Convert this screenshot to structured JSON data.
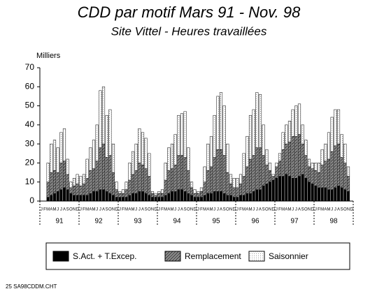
{
  "chart_data": {
    "type": "stacked-bar",
    "title": "CDD par motif Mars 91 - Nov. 98",
    "subtitle": "Site Vittel - Heures travaillées",
    "y_label": "Milliers",
    "footer": "25 SA98CDDM.CHT",
    "categories": [
      "J",
      "F",
      "M",
      "A",
      "M",
      "J",
      "J",
      "A",
      "S",
      "O",
      "N",
      "D",
      "J",
      "F",
      "M",
      "A",
      "M",
      "J",
      "J",
      "A",
      "S",
      "O",
      "N",
      "D",
      "J",
      "F",
      "M",
      "A",
      "M",
      "J",
      "J",
      "A",
      "S",
      "O",
      "N",
      "D",
      "J",
      "F",
      "M",
      "A",
      "M",
      "J",
      "J",
      "A",
      "S",
      "O",
      "N",
      "D",
      "J",
      "F",
      "M",
      "A",
      "M",
      "J",
      "J",
      "A",
      "S",
      "O",
      "N",
      "D",
      "J",
      "F",
      "M",
      "A",
      "M",
      "J",
      "J",
      "A",
      "S",
      "O",
      "N",
      "D",
      "J",
      "F",
      "M",
      "A",
      "M",
      "J",
      "J",
      "A",
      "S",
      "O",
      "N",
      "D",
      "J",
      "F",
      "M",
      "A",
      "M",
      "J",
      "J",
      "A",
      "S",
      "O",
      "N",
      "D"
    ],
    "years": [
      "91",
      "92",
      "93",
      "94",
      "95",
      "96",
      "97",
      "98"
    ],
    "series": [
      {
        "name": "S.Act. + T.Excep.",
        "color": "#000000",
        "values": [
          null,
          null,
          2,
          3,
          4,
          5,
          6,
          7,
          6,
          4,
          3,
          3,
          3,
          3,
          3,
          4,
          5,
          5,
          6,
          6,
          5,
          4,
          3,
          2,
          2,
          2,
          2,
          3,
          4,
          4,
          5,
          5,
          4,
          3,
          2,
          2,
          2,
          2,
          3,
          4,
          5,
          5,
          6,
          6,
          5,
          4,
          3,
          2,
          2,
          2,
          3,
          4,
          4,
          5,
          5,
          5,
          4,
          3,
          3,
          2,
          2,
          3,
          3,
          4,
          4,
          5,
          6,
          6,
          8,
          9,
          10,
          11,
          12,
          13,
          13,
          14,
          13,
          12,
          12,
          13,
          14,
          12,
          10,
          9,
          8,
          7,
          7,
          7,
          6,
          6,
          7,
          8,
          7,
          6,
          5,
          null
        ]
      },
      {
        "name": "Remplacement",
        "color": "#8c8c8c",
        "values": [
          null,
          null,
          8,
          12,
          12,
          10,
          14,
          14,
          8,
          3,
          5,
          6,
          5,
          6,
          9,
          12,
          12,
          16,
          22,
          24,
          18,
          20,
          12,
          4,
          2,
          2,
          4,
          8,
          10,
          12,
          15,
          14,
          13,
          10,
          2,
          1,
          2,
          2,
          8,
          12,
          12,
          14,
          18,
          18,
          18,
          12,
          4,
          2,
          2,
          3,
          7,
          12,
          14,
          18,
          22,
          22,
          20,
          12,
          6,
          5,
          5,
          6,
          10,
          14,
          18,
          19,
          22,
          22,
          16,
          10,
          6,
          2,
          6,
          8,
          14,
          16,
          18,
          22,
          22,
          22,
          16,
          12,
          8,
          8,
          8,
          8,
          12,
          14,
          16,
          20,
          22,
          22,
          16,
          14,
          8,
          null
        ]
      },
      {
        "name": "Saisonnier",
        "color": "#ffffff",
        "values": [
          null,
          null,
          10,
          15,
          16,
          13,
          16,
          17,
          8,
          3,
          4,
          5,
          5,
          5,
          10,
          12,
          15,
          19,
          30,
          30,
          22,
          24,
          15,
          4,
          1,
          2,
          4,
          9,
          12,
          14,
          18,
          17,
          16,
          12,
          1,
          1,
          1,
          2,
          9,
          12,
          13,
          16,
          21,
          22,
          24,
          12,
          3,
          2,
          1,
          2,
          8,
          14,
          16,
          22,
          28,
          30,
          26,
          15,
          5,
          5,
          5,
          5,
          12,
          16,
          23,
          24,
          29,
          28,
          16,
          8,
          4,
          1,
          2,
          4,
          9,
          10,
          11,
          14,
          16,
          16,
          10,
          8,
          4,
          3,
          4,
          5,
          8,
          9,
          14,
          18,
          19,
          18,
          12,
          10,
          5,
          null
        ]
      }
    ],
    "ylim": [
      0,
      70
    ],
    "yticks": [
      0,
      10,
      20,
      30,
      40,
      50,
      60,
      70
    ],
    "grid": false
  }
}
